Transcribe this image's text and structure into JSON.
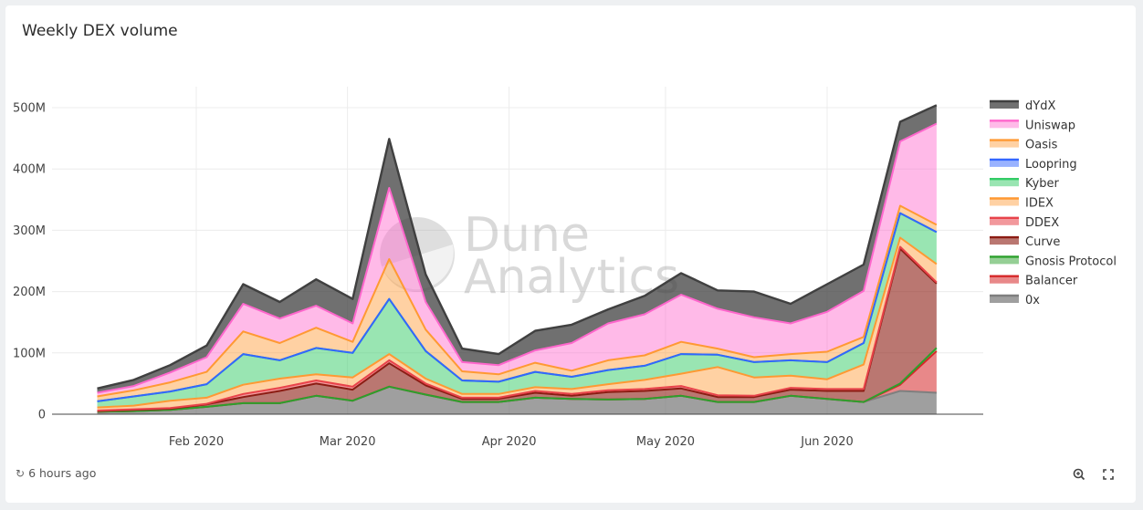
{
  "widget": {
    "title": "Weekly DEX volume",
    "timestamp": "6 hours ago",
    "refresh_icon": "refresh-icon",
    "zoom_icon": "zoom-in-icon",
    "fullscreen_icon": "fullscreen-icon"
  },
  "watermark": {
    "line1": "Dune",
    "line2": "Analytics"
  },
  "chart_data": {
    "type": "area",
    "title": "Weekly DEX volume",
    "stacked": true,
    "x": [
      "2020-01-13",
      "2020-01-20",
      "2020-01-27",
      "2020-02-03",
      "2020-02-10",
      "2020-02-17",
      "2020-02-24",
      "2020-03-02",
      "2020-03-09",
      "2020-03-16",
      "2020-03-23",
      "2020-03-30",
      "2020-04-06",
      "2020-04-13",
      "2020-04-20",
      "2020-04-27",
      "2020-05-04",
      "2020-05-11",
      "2020-05-18",
      "2020-05-25",
      "2020-06-01",
      "2020-06-08",
      "2020-06-15",
      "2020-06-22"
    ],
    "x_ticks": [
      {
        "date": "2020-02-01",
        "label": "Feb 2020"
      },
      {
        "date": "2020-03-01",
        "label": "Mar 2020"
      },
      {
        "date": "2020-04-01",
        "label": "Apr 2020"
      },
      {
        "date": "2020-05-01",
        "label": "May 2020"
      },
      {
        "date": "2020-06-01",
        "label": "Jun 2020"
      }
    ],
    "y_ticks": [
      {
        "value": 0,
        "label": "0"
      },
      {
        "value": 100000000,
        "label": "100M"
      },
      {
        "value": 200000000,
        "label": "200M"
      },
      {
        "value": 300000000,
        "label": "300M"
      },
      {
        "value": 400000000,
        "label": "400M"
      },
      {
        "value": 500000000,
        "label": "500M"
      }
    ],
    "ylim": [
      0,
      500000000
    ],
    "grid": true,
    "legend_position": "right",
    "series": [
      {
        "name": "0x",
        "color": "#7f7f7f",
        "values": [
          4000000,
          5000000,
          7000000,
          12000000,
          18000000,
          18000000,
          30000000,
          22000000,
          45000000,
          32000000,
          20000000,
          20000000,
          27000000,
          25000000,
          24000000,
          25000000,
          30000000,
          20000000,
          20000000,
          30000000,
          25000000,
          20000000,
          38000000,
          35000000
        ]
      },
      {
        "name": "Balancer",
        "color": "#d62728",
        "values": [
          0,
          0,
          0,
          0,
          0,
          0,
          0,
          0,
          0,
          0,
          0,
          0,
          0,
          0,
          0,
          0,
          0,
          0,
          0,
          0,
          0,
          0,
          10000000,
          68000000
        ]
      },
      {
        "name": "Gnosis Protocol",
        "color": "#2ca02c",
        "values": [
          0,
          0,
          0,
          0,
          0,
          0,
          0,
          0,
          0,
          0,
          0,
          0,
          0,
          0,
          0,
          0,
          0,
          0,
          0,
          0,
          0,
          0,
          2000000,
          5000000
        ]
      },
      {
        "name": "Curve",
        "color": "#8c1c13",
        "values": [
          1000000,
          2000000,
          2000000,
          4000000,
          10000000,
          20000000,
          20000000,
          18000000,
          38000000,
          15000000,
          5000000,
          5000000,
          8000000,
          5000000,
          12000000,
          13000000,
          12000000,
          8000000,
          8000000,
          10000000,
          13000000,
          18000000,
          220000000,
          105000000
        ]
      },
      {
        "name": "DDEX",
        "color": "#e8434a",
        "values": [
          1000000,
          1000000,
          1000000,
          1000000,
          5000000,
          5000000,
          5000000,
          5000000,
          5000000,
          3000000,
          2000000,
          2000000,
          3000000,
          3000000,
          3000000,
          3000000,
          4000000,
          3000000,
          2000000,
          3000000,
          3000000,
          3000000,
          3000000,
          2000000
        ]
      },
      {
        "name": "IDEX",
        "color": "#ff9933",
        "values": [
          5000000,
          6000000,
          12000000,
          10000000,
          15000000,
          15000000,
          10000000,
          15000000,
          10000000,
          8000000,
          6000000,
          6000000,
          6000000,
          8000000,
          10000000,
          15000000,
          20000000,
          46000000,
          30000000,
          20000000,
          16000000,
          40000000,
          15000000,
          30000000
        ]
      },
      {
        "name": "Kyber",
        "color": "#33cc66",
        "values": [
          10000000,
          15000000,
          15000000,
          22000000,
          50000000,
          30000000,
          43000000,
          40000000,
          90000000,
          45000000,
          22000000,
          20000000,
          25000000,
          20000000,
          23000000,
          23000000,
          32000000,
          20000000,
          25000000,
          25000000,
          28000000,
          35000000,
          40000000,
          52000000
        ]
      },
      {
        "name": "Loopring",
        "color": "#3366ff",
        "values": [
          0,
          0,
          0,
          0,
          0,
          0,
          0,
          0,
          0,
          0,
          0,
          0,
          0,
          0,
          0,
          0,
          0,
          0,
          0,
          0,
          0,
          0,
          0,
          0
        ]
      },
      {
        "name": "Oasis",
        "color": "#ff9933",
        "values": [
          8000000,
          10000000,
          15000000,
          20000000,
          37000000,
          28000000,
          33000000,
          18000000,
          65000000,
          35000000,
          15000000,
          12000000,
          15000000,
          10000000,
          16000000,
          17000000,
          20000000,
          10000000,
          8000000,
          10000000,
          17000000,
          10000000,
          12000000,
          12000000
        ]
      },
      {
        "name": "Uniswap",
        "color": "#ff66cc",
        "values": [
          6000000,
          7000000,
          16000000,
          24000000,
          45000000,
          40000000,
          36000000,
          30000000,
          116000000,
          45000000,
          15000000,
          15000000,
          20000000,
          45000000,
          60000000,
          67000000,
          77000000,
          65000000,
          65000000,
          50000000,
          65000000,
          75000000,
          105000000,
          165000000
        ]
      },
      {
        "name": "dYdX",
        "color": "#404040",
        "values": [
          7000000,
          10000000,
          12000000,
          19000000,
          32000000,
          27000000,
          43000000,
          40000000,
          80000000,
          45000000,
          22000000,
          18000000,
          32000000,
          30000000,
          23000000,
          30000000,
          35000000,
          30000000,
          42000000,
          32000000,
          45000000,
          43000000,
          32000000,
          30000000
        ]
      }
    ]
  }
}
